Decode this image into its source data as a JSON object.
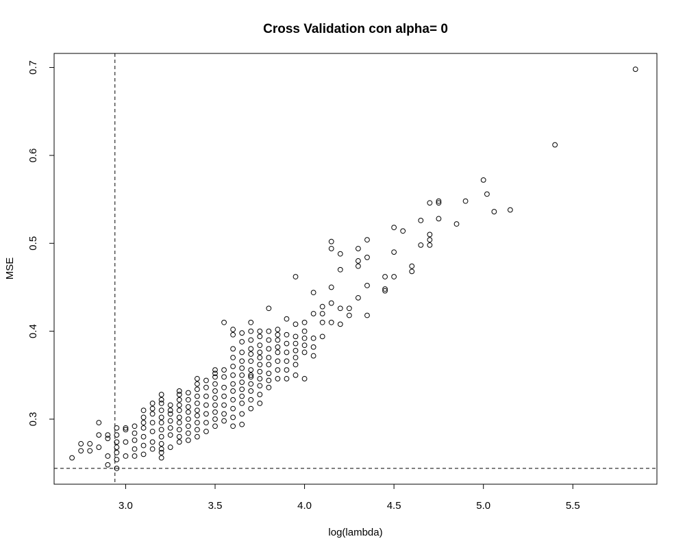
{
  "chart_data": {
    "type": "scatter",
    "title": "Cross Validation con alpha= 0",
    "xlabel": "log(lambda)",
    "ylabel": "MSE",
    "xlim": [
      2.6,
      5.97
    ],
    "ylim": [
      0.226,
      0.716
    ],
    "x_ticks": [
      "3.0",
      "3.5",
      "4.0",
      "4.5",
      "5.0",
      "5.5"
    ],
    "y_ticks": [
      "0.3",
      "0.4",
      "0.5",
      "0.6",
      "0.7"
    ],
    "reference_lines": {
      "vertical_x": 2.94,
      "horizontal_y": 0.244,
      "style": "dashed"
    },
    "grid": false,
    "legend": "none",
    "marker": "open-circle",
    "x": [
      2.7,
      2.75,
      2.75,
      2.8,
      2.8,
      2.85,
      2.85,
      2.85,
      2.9,
      2.9,
      2.9,
      2.9,
      2.95,
      2.95,
      2.95,
      2.95,
      2.95,
      2.95,
      2.95,
      3.0,
      3.0,
      3.0,
      3.0,
      3.05,
      3.05,
      3.05,
      3.05,
      3.05,
      3.1,
      3.1,
      3.1,
      3.1,
      3.1,
      3.1,
      3.1,
      3.15,
      3.15,
      3.15,
      3.15,
      3.15,
      3.15,
      3.15,
      3.2,
      3.2,
      3.2,
      3.2,
      3.2,
      3.2,
      3.2,
      3.2,
      3.2,
      3.2,
      3.2,
      3.2,
      3.25,
      3.25,
      3.25,
      3.25,
      3.25,
      3.25,
      3.25,
      3.3,
      3.3,
      3.3,
      3.3,
      3.3,
      3.3,
      3.3,
      3.3,
      3.3,
      3.3,
      3.35,
      3.35,
      3.35,
      3.35,
      3.35,
      3.35,
      3.35,
      3.35,
      3.4,
      3.4,
      3.4,
      3.4,
      3.4,
      3.4,
      3.4,
      3.4,
      3.4,
      3.4,
      3.45,
      3.45,
      3.45,
      3.45,
      3.45,
      3.45,
      3.45,
      3.5,
      3.5,
      3.5,
      3.5,
      3.5,
      3.5,
      3.5,
      3.5,
      3.5,
      3.5,
      3.55,
      3.55,
      3.55,
      3.55,
      3.55,
      3.55,
      3.55,
      3.55,
      3.6,
      3.6,
      3.6,
      3.6,
      3.6,
      3.6,
      3.6,
      3.6,
      3.6,
      3.6,
      3.6,
      3.6,
      3.65,
      3.65,
      3.65,
      3.65,
      3.65,
      3.65,
      3.65,
      3.65,
      3.65,
      3.65,
      3.65,
      3.65,
      3.7,
      3.7,
      3.7,
      3.7,
      3.7,
      3.7,
      3.7,
      3.7,
      3.7,
      3.7,
      3.7,
      3.7,
      3.7,
      3.75,
      3.75,
      3.75,
      3.75,
      3.75,
      3.75,
      3.75,
      3.75,
      3.75,
      3.75,
      3.75,
      3.8,
      3.8,
      3.8,
      3.8,
      3.8,
      3.8,
      3.8,
      3.8,
      3.8,
      3.85,
      3.85,
      3.85,
      3.85,
      3.85,
      3.85,
      3.85,
      3.85,
      3.9,
      3.9,
      3.9,
      3.9,
      3.9,
      3.9,
      3.9,
      3.95,
      3.95,
      3.95,
      3.95,
      3.95,
      3.95,
      3.95,
      3.95,
      4.0,
      4.0,
      4.0,
      4.0,
      4.0,
      4.0,
      4.05,
      4.05,
      4.05,
      4.05,
      4.05,
      4.1,
      4.1,
      4.1,
      4.1,
      4.15,
      4.15,
      4.15,
      4.15,
      4.15,
      4.2,
      4.2,
      4.2,
      4.2,
      4.25,
      4.25,
      4.3,
      4.3,
      4.3,
      4.3,
      4.35,
      4.35,
      4.35,
      4.35,
      4.45,
      4.45,
      4.45,
      4.5,
      4.5,
      4.5,
      4.55,
      4.6,
      4.6,
      4.65,
      4.65,
      4.7,
      4.7,
      4.7,
      4.7,
      4.75,
      4.75,
      4.75,
      4.85,
      4.9,
      5.0,
      5.02,
      5.06,
      5.15,
      5.4,
      5.85
    ],
    "y": [
      0.256,
      0.264,
      0.272,
      0.264,
      0.272,
      0.268,
      0.282,
      0.296,
      0.248,
      0.258,
      0.278,
      0.282,
      0.244,
      0.254,
      0.262,
      0.268,
      0.274,
      0.282,
      0.29,
      0.258,
      0.274,
      0.288,
      0.29,
      0.258,
      0.266,
      0.276,
      0.284,
      0.292,
      0.26,
      0.27,
      0.28,
      0.29,
      0.296,
      0.302,
      0.31,
      0.266,
      0.274,
      0.286,
      0.296,
      0.306,
      0.312,
      0.318,
      0.256,
      0.262,
      0.266,
      0.272,
      0.28,
      0.288,
      0.296,
      0.302,
      0.31,
      0.318,
      0.322,
      0.328,
      0.268,
      0.282,
      0.29,
      0.298,
      0.306,
      0.31,
      0.316,
      0.274,
      0.28,
      0.288,
      0.296,
      0.302,
      0.31,
      0.316,
      0.322,
      0.328,
      0.332,
      0.276,
      0.284,
      0.292,
      0.3,
      0.308,
      0.314,
      0.322,
      0.33,
      0.28,
      0.288,
      0.296,
      0.304,
      0.31,
      0.318,
      0.326,
      0.334,
      0.34,
      0.346,
      0.286,
      0.296,
      0.306,
      0.316,
      0.326,
      0.336,
      0.344,
      0.292,
      0.3,
      0.308,
      0.316,
      0.324,
      0.332,
      0.34,
      0.348,
      0.352,
      0.356,
      0.298,
      0.306,
      0.316,
      0.326,
      0.336,
      0.348,
      0.356,
      0.41,
      0.292,
      0.302,
      0.312,
      0.322,
      0.332,
      0.34,
      0.35,
      0.36,
      0.37,
      0.38,
      0.396,
      0.402,
      0.294,
      0.306,
      0.318,
      0.326,
      0.334,
      0.342,
      0.35,
      0.358,
      0.366,
      0.376,
      0.388,
      0.398,
      0.312,
      0.322,
      0.332,
      0.34,
      0.348,
      0.356,
      0.366,
      0.374,
      0.38,
      0.39,
      0.4,
      0.41,
      0.35,
      0.318,
      0.328,
      0.338,
      0.346,
      0.354,
      0.362,
      0.37,
      0.376,
      0.384,
      0.394,
      0.4,
      0.336,
      0.344,
      0.352,
      0.362,
      0.37,
      0.38,
      0.39,
      0.4,
      0.426,
      0.346,
      0.356,
      0.366,
      0.376,
      0.382,
      0.39,
      0.396,
      0.402,
      0.346,
      0.356,
      0.366,
      0.376,
      0.386,
      0.396,
      0.414,
      0.35,
      0.362,
      0.37,
      0.378,
      0.386,
      0.394,
      0.408,
      0.462,
      0.346,
      0.376,
      0.384,
      0.392,
      0.4,
      0.41,
      0.372,
      0.382,
      0.392,
      0.42,
      0.444,
      0.394,
      0.41,
      0.42,
      0.428,
      0.41,
      0.432,
      0.45,
      0.494,
      0.502,
      0.408,
      0.426,
      0.47,
      0.488,
      0.418,
      0.426,
      0.438,
      0.474,
      0.48,
      0.494,
      0.418,
      0.452,
      0.484,
      0.504,
      0.446,
      0.448,
      0.462,
      0.462,
      0.49,
      0.518,
      0.514,
      0.468,
      0.474,
      0.498,
      0.526,
      0.498,
      0.504,
      0.51,
      0.546,
      0.528,
      0.546,
      0.548,
      0.522,
      0.548,
      0.572,
      0.556,
      0.536,
      0.538,
      0.612,
      0.698
    ]
  }
}
